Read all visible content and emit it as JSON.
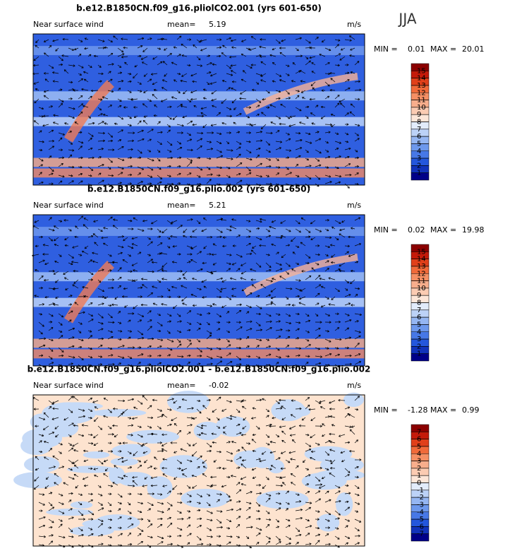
{
  "season": "JJA",
  "panels": [
    {
      "title": "b.e12.B1850CN.f09_g16.pliolCO2.001 (yrs 601-650)",
      "variable": "Near surface wind",
      "mean_label": "mean=",
      "mean": 5.19,
      "units": "m/s",
      "min_label": "MIN =",
      "min": 0.01,
      "max_label": "MAX =",
      "max": 20.01,
      "colorbar": {
        "ticks": [
          15,
          14,
          13,
          12,
          11,
          10,
          9,
          8,
          7,
          6,
          5,
          4,
          3,
          2,
          1
        ],
        "colors": [
          "#8b0000",
          "#c41a0a",
          "#e0401a",
          "#f06a3a",
          "#f58f64",
          "#f8ae8c",
          "#fbcbb2",
          "#fde6d8",
          "#e2ecfb",
          "#bcd2f7",
          "#95b6f2",
          "#6d98ec",
          "#4778e6",
          "#2457dc",
          "#1133bb",
          "#000088"
        ]
      }
    },
    {
      "title": "b.e12.B1850CN.f09_g16.plio.002 (yrs 601-650)",
      "variable": "Near surface wind",
      "mean_label": "mean=",
      "mean": 5.21,
      "units": "m/s",
      "min_label": "MIN =",
      "min": 0.02,
      "max_label": "MAX =",
      "max": 19.98,
      "colorbar": {
        "ticks": [
          15,
          14,
          13,
          12,
          11,
          10,
          9,
          8,
          7,
          6,
          5,
          4,
          3,
          2,
          1
        ],
        "colors": [
          "#8b0000",
          "#c41a0a",
          "#e0401a",
          "#f06a3a",
          "#f58f64",
          "#f8ae8c",
          "#fbcbb2",
          "#fde6d8",
          "#e2ecfb",
          "#bcd2f7",
          "#95b6f2",
          "#6d98ec",
          "#4778e6",
          "#2457dc",
          "#1133bb",
          "#000088"
        ]
      }
    },
    {
      "title": "b.e12.B1850CN.f09_g16.pliolCO2.001 - b.e12.B1850CN.f09_g16.plio.002",
      "variable": "Near surface wind",
      "mean_label": "mean=",
      "mean": -0.02,
      "units": "m/s",
      "min_label": "MIN =",
      "min": -1.28,
      "max_label": "MAX =",
      "max": 0.99,
      "colorbar": {
        "ticks": [
          7,
          6,
          5,
          4,
          3,
          2,
          1,
          0,
          -1,
          -2,
          -3,
          -4,
          -5,
          -6,
          -7
        ],
        "colors": [
          "#8b0000",
          "#c41a0a",
          "#e0401a",
          "#f06a3a",
          "#f58f64",
          "#f8ae8c",
          "#fbcbb2",
          "#fde6d8",
          "#e2ecfb",
          "#bcd2f7",
          "#95b6f2",
          "#6d98ec",
          "#4778e6",
          "#2457dc",
          "#1133bb",
          "#000088"
        ]
      }
    }
  ]
}
